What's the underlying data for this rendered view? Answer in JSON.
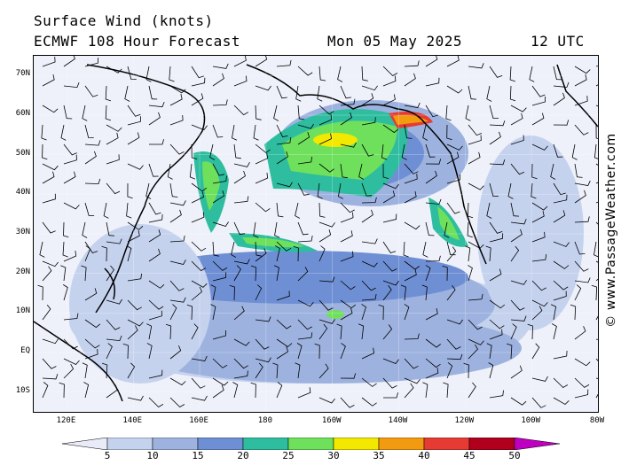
{
  "header": {
    "line1": "Surface Wind (knots)",
    "line2": "ECMWF 108 Hour Forecast",
    "date": "Mon 05 May 2025",
    "utc": "12 UTC"
  },
  "watermark": "© www.PassageWeather.com",
  "map": {
    "lon_range": [
      110,
      280
    ],
    "lat_range": [
      -15,
      75
    ],
    "lat_labels": [
      "70N",
      "60N",
      "50N",
      "40N",
      "30N",
      "20N",
      "10N",
      "EQ",
      "10S"
    ],
    "lat_values": [
      70,
      60,
      50,
      40,
      30,
      20,
      10,
      0,
      -10
    ],
    "lon_labels": [
      "120E",
      "140E",
      "160E",
      "180",
      "160W",
      "140W",
      "120W",
      "100W",
      "80W"
    ],
    "lon_values": [
      120,
      140,
      160,
      180,
      200,
      220,
      240,
      260,
      280
    ]
  },
  "legend": {
    "labels": [
      "5",
      "10",
      "15",
      "20",
      "25",
      "30",
      "35",
      "40",
      "45",
      "50"
    ],
    "colors": [
      "#e9ecf8",
      "#c5d2ee",
      "#9db2df",
      "#6f8fd4",
      "#2ebd9f",
      "#6ee05c",
      "#f2e800",
      "#f29a10",
      "#e63b32",
      "#b0001e",
      "#c000c0"
    ]
  }
}
